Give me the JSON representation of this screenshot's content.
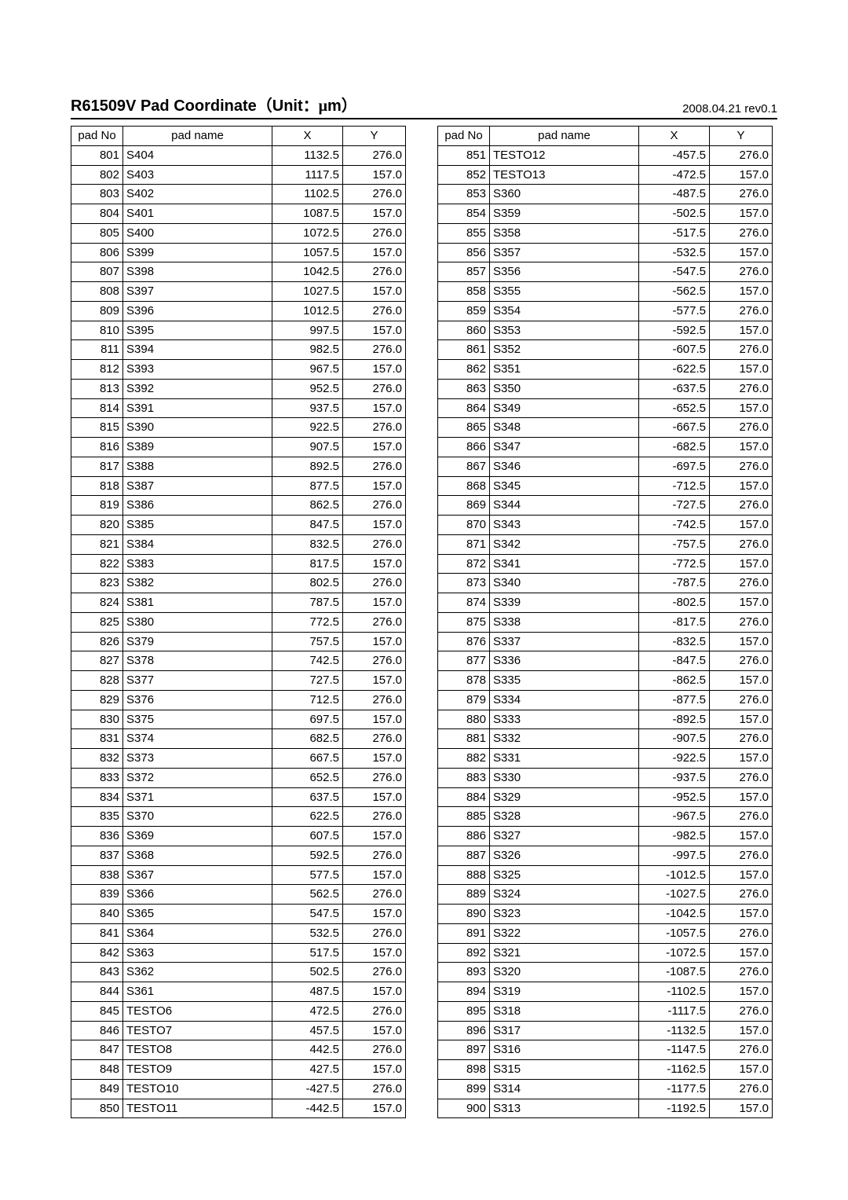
{
  "header": {
    "title_prefix": "R61509V Pad Coordinate",
    "unit_open": "（Unit：",
    "unit_mu": "μ",
    "unit_close": "m）",
    "revision": "2008.04.21 rev0.1"
  },
  "columns": {
    "padNo": "pad No",
    "padName": "pad name",
    "x": "X",
    "y": "Y"
  },
  "left": [
    {
      "no": "801",
      "name": "S404",
      "x": "1132.5",
      "y": "276.0"
    },
    {
      "no": "802",
      "name": "S403",
      "x": "1117.5",
      "y": "157.0"
    },
    {
      "no": "803",
      "name": "S402",
      "x": "1102.5",
      "y": "276.0"
    },
    {
      "no": "804",
      "name": "S401",
      "x": "1087.5",
      "y": "157.0"
    },
    {
      "no": "805",
      "name": "S400",
      "x": "1072.5",
      "y": "276.0"
    },
    {
      "no": "806",
      "name": "S399",
      "x": "1057.5",
      "y": "157.0"
    },
    {
      "no": "807",
      "name": "S398",
      "x": "1042.5",
      "y": "276.0"
    },
    {
      "no": "808",
      "name": "S397",
      "x": "1027.5",
      "y": "157.0"
    },
    {
      "no": "809",
      "name": "S396",
      "x": "1012.5",
      "y": "276.0"
    },
    {
      "no": "810",
      "name": "S395",
      "x": "997.5",
      "y": "157.0"
    },
    {
      "no": "811",
      "name": "S394",
      "x": "982.5",
      "y": "276.0"
    },
    {
      "no": "812",
      "name": "S393",
      "x": "967.5",
      "y": "157.0"
    },
    {
      "no": "813",
      "name": "S392",
      "x": "952.5",
      "y": "276.0"
    },
    {
      "no": "814",
      "name": "S391",
      "x": "937.5",
      "y": "157.0"
    },
    {
      "no": "815",
      "name": "S390",
      "x": "922.5",
      "y": "276.0"
    },
    {
      "no": "816",
      "name": "S389",
      "x": "907.5",
      "y": "157.0"
    },
    {
      "no": "817",
      "name": "S388",
      "x": "892.5",
      "y": "276.0"
    },
    {
      "no": "818",
      "name": "S387",
      "x": "877.5",
      "y": "157.0"
    },
    {
      "no": "819",
      "name": "S386",
      "x": "862.5",
      "y": "276.0"
    },
    {
      "no": "820",
      "name": "S385",
      "x": "847.5",
      "y": "157.0"
    },
    {
      "no": "821",
      "name": "S384",
      "x": "832.5",
      "y": "276.0"
    },
    {
      "no": "822",
      "name": "S383",
      "x": "817.5",
      "y": "157.0"
    },
    {
      "no": "823",
      "name": "S382",
      "x": "802.5",
      "y": "276.0"
    },
    {
      "no": "824",
      "name": "S381",
      "x": "787.5",
      "y": "157.0"
    },
    {
      "no": "825",
      "name": "S380",
      "x": "772.5",
      "y": "276.0"
    },
    {
      "no": "826",
      "name": "S379",
      "x": "757.5",
      "y": "157.0"
    },
    {
      "no": "827",
      "name": "S378",
      "x": "742.5",
      "y": "276.0"
    },
    {
      "no": "828",
      "name": "S377",
      "x": "727.5",
      "y": "157.0"
    },
    {
      "no": "829",
      "name": "S376",
      "x": "712.5",
      "y": "276.0"
    },
    {
      "no": "830",
      "name": "S375",
      "x": "697.5",
      "y": "157.0"
    },
    {
      "no": "831",
      "name": "S374",
      "x": "682.5",
      "y": "276.0"
    },
    {
      "no": "832",
      "name": "S373",
      "x": "667.5",
      "y": "157.0"
    },
    {
      "no": "833",
      "name": "S372",
      "x": "652.5",
      "y": "276.0"
    },
    {
      "no": "834",
      "name": "S371",
      "x": "637.5",
      "y": "157.0"
    },
    {
      "no": "835",
      "name": "S370",
      "x": "622.5",
      "y": "276.0"
    },
    {
      "no": "836",
      "name": "S369",
      "x": "607.5",
      "y": "157.0"
    },
    {
      "no": "837",
      "name": "S368",
      "x": "592.5",
      "y": "276.0"
    },
    {
      "no": "838",
      "name": "S367",
      "x": "577.5",
      "y": "157.0"
    },
    {
      "no": "839",
      "name": "S366",
      "x": "562.5",
      "y": "276.0"
    },
    {
      "no": "840",
      "name": "S365",
      "x": "547.5",
      "y": "157.0"
    },
    {
      "no": "841",
      "name": "S364",
      "x": "532.5",
      "y": "276.0"
    },
    {
      "no": "842",
      "name": "S363",
      "x": "517.5",
      "y": "157.0"
    },
    {
      "no": "843",
      "name": "S362",
      "x": "502.5",
      "y": "276.0"
    },
    {
      "no": "844",
      "name": "S361",
      "x": "487.5",
      "y": "157.0"
    },
    {
      "no": "845",
      "name": "TESTO6",
      "x": "472.5",
      "y": "276.0"
    },
    {
      "no": "846",
      "name": "TESTO7",
      "x": "457.5",
      "y": "157.0"
    },
    {
      "no": "847",
      "name": "TESTO8",
      "x": "442.5",
      "y": "276.0"
    },
    {
      "no": "848",
      "name": "TESTO9",
      "x": "427.5",
      "y": "157.0"
    },
    {
      "no": "849",
      "name": "TESTO10",
      "x": "-427.5",
      "y": "276.0"
    },
    {
      "no": "850",
      "name": "TESTO11",
      "x": "-442.5",
      "y": "157.0"
    }
  ],
  "right": [
    {
      "no": "851",
      "name": "TESTO12",
      "x": "-457.5",
      "y": "276.0"
    },
    {
      "no": "852",
      "name": "TESTO13",
      "x": "-472.5",
      "y": "157.0"
    },
    {
      "no": "853",
      "name": "S360",
      "x": "-487.5",
      "y": "276.0"
    },
    {
      "no": "854",
      "name": "S359",
      "x": "-502.5",
      "y": "157.0"
    },
    {
      "no": "855",
      "name": "S358",
      "x": "-517.5",
      "y": "276.0"
    },
    {
      "no": "856",
      "name": "S357",
      "x": "-532.5",
      "y": "157.0"
    },
    {
      "no": "857",
      "name": "S356",
      "x": "-547.5",
      "y": "276.0"
    },
    {
      "no": "858",
      "name": "S355",
      "x": "-562.5",
      "y": "157.0"
    },
    {
      "no": "859",
      "name": "S354",
      "x": "-577.5",
      "y": "276.0"
    },
    {
      "no": "860",
      "name": "S353",
      "x": "-592.5",
      "y": "157.0"
    },
    {
      "no": "861",
      "name": "S352",
      "x": "-607.5",
      "y": "276.0"
    },
    {
      "no": "862",
      "name": "S351",
      "x": "-622.5",
      "y": "157.0"
    },
    {
      "no": "863",
      "name": "S350",
      "x": "-637.5",
      "y": "276.0"
    },
    {
      "no": "864",
      "name": "S349",
      "x": "-652.5",
      "y": "157.0"
    },
    {
      "no": "865",
      "name": "S348",
      "x": "-667.5",
      "y": "276.0"
    },
    {
      "no": "866",
      "name": "S347",
      "x": "-682.5",
      "y": "157.0"
    },
    {
      "no": "867",
      "name": "S346",
      "x": "-697.5",
      "y": "276.0"
    },
    {
      "no": "868",
      "name": "S345",
      "x": "-712.5",
      "y": "157.0"
    },
    {
      "no": "869",
      "name": "S344",
      "x": "-727.5",
      "y": "276.0"
    },
    {
      "no": "870",
      "name": "S343",
      "x": "-742.5",
      "y": "157.0"
    },
    {
      "no": "871",
      "name": "S342",
      "x": "-757.5",
      "y": "276.0"
    },
    {
      "no": "872",
      "name": "S341",
      "x": "-772.5",
      "y": "157.0"
    },
    {
      "no": "873",
      "name": "S340",
      "x": "-787.5",
      "y": "276.0"
    },
    {
      "no": "874",
      "name": "S339",
      "x": "-802.5",
      "y": "157.0"
    },
    {
      "no": "875",
      "name": "S338",
      "x": "-817.5",
      "y": "276.0"
    },
    {
      "no": "876",
      "name": "S337",
      "x": "-832.5",
      "y": "157.0"
    },
    {
      "no": "877",
      "name": "S336",
      "x": "-847.5",
      "y": "276.0"
    },
    {
      "no": "878",
      "name": "S335",
      "x": "-862.5",
      "y": "157.0"
    },
    {
      "no": "879",
      "name": "S334",
      "x": "-877.5",
      "y": "276.0"
    },
    {
      "no": "880",
      "name": "S333",
      "x": "-892.5",
      "y": "157.0"
    },
    {
      "no": "881",
      "name": "S332",
      "x": "-907.5",
      "y": "276.0"
    },
    {
      "no": "882",
      "name": "S331",
      "x": "-922.5",
      "y": "157.0"
    },
    {
      "no": "883",
      "name": "S330",
      "x": "-937.5",
      "y": "276.0"
    },
    {
      "no": "884",
      "name": "S329",
      "x": "-952.5",
      "y": "157.0"
    },
    {
      "no": "885",
      "name": "S328",
      "x": "-967.5",
      "y": "276.0"
    },
    {
      "no": "886",
      "name": "S327",
      "x": "-982.5",
      "y": "157.0"
    },
    {
      "no": "887",
      "name": "S326",
      "x": "-997.5",
      "y": "276.0"
    },
    {
      "no": "888",
      "name": "S325",
      "x": "-1012.5",
      "y": "157.0"
    },
    {
      "no": "889",
      "name": "S324",
      "x": "-1027.5",
      "y": "276.0"
    },
    {
      "no": "890",
      "name": "S323",
      "x": "-1042.5",
      "y": "157.0"
    },
    {
      "no": "891",
      "name": "S322",
      "x": "-1057.5",
      "y": "276.0"
    },
    {
      "no": "892",
      "name": "S321",
      "x": "-1072.5",
      "y": "157.0"
    },
    {
      "no": "893",
      "name": "S320",
      "x": "-1087.5",
      "y": "276.0"
    },
    {
      "no": "894",
      "name": "S319",
      "x": "-1102.5",
      "y": "157.0"
    },
    {
      "no": "895",
      "name": "S318",
      "x": "-1117.5",
      "y": "276.0"
    },
    {
      "no": "896",
      "name": "S317",
      "x": "-1132.5",
      "y": "157.0"
    },
    {
      "no": "897",
      "name": "S316",
      "x": "-1147.5",
      "y": "276.0"
    },
    {
      "no": "898",
      "name": "S315",
      "x": "-1162.5",
      "y": "157.0"
    },
    {
      "no": "899",
      "name": "S314",
      "x": "-1177.5",
      "y": "276.0"
    },
    {
      "no": "900",
      "name": "S313",
      "x": "-1192.5",
      "y": "157.0"
    }
  ]
}
